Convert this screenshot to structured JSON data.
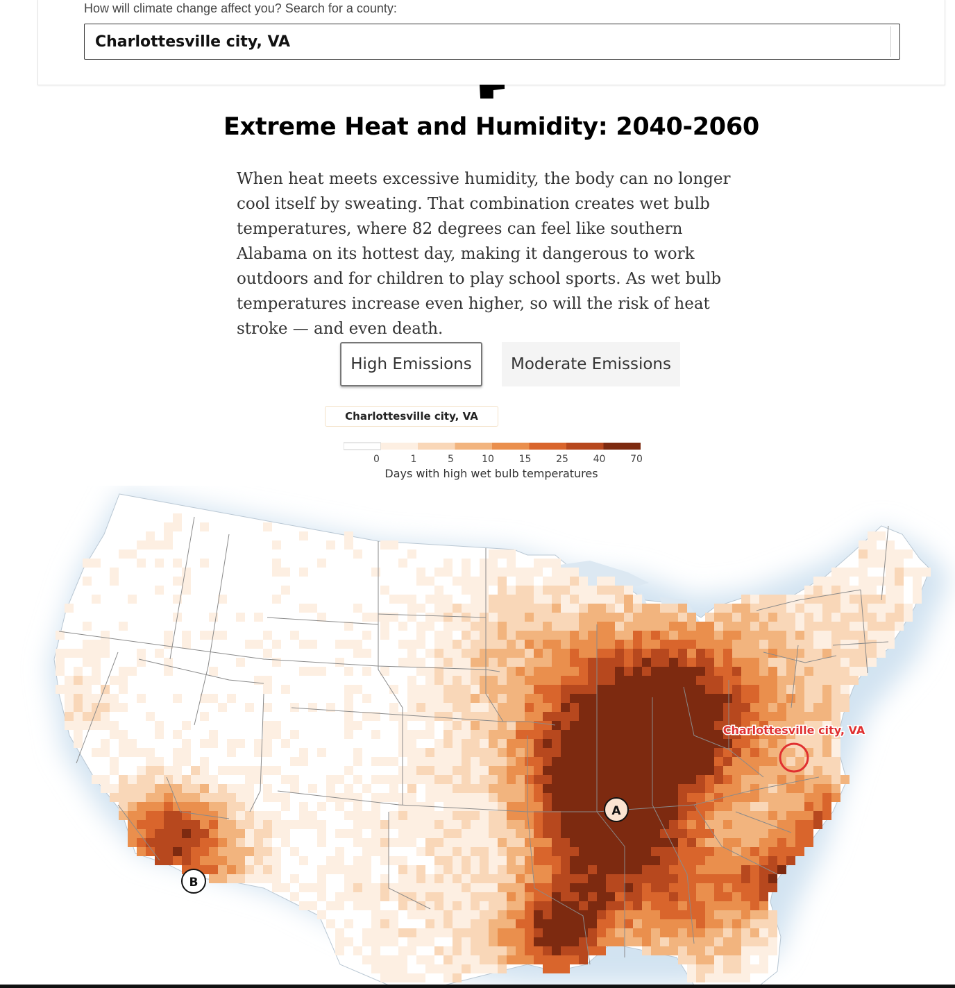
{
  "search": {
    "label": "How will climate change affect you? Search for a county:",
    "value": "Charlottesville city, VA"
  },
  "title": "Extreme Heat and Humidity: 2040-2060",
  "body": "When heat meets excessive humidity, the body can no longer cool itself by sweating. That combination creates wet bulb temperatures, where 82 degrees can feel like southern Alabama on its hottest day, making it dangerous to work outdoors and for children to play school sports. As wet bulb temperatures increase even higher, so will the risk of heat stroke — and even death.",
  "buttons": {
    "high": "High Emissions",
    "moderate": "Moderate Emissions",
    "selected": "High Emissions"
  },
  "county_pill": "Charlottesville city, VA",
  "legend": {
    "caption": "Days with high wet bulb temperatures",
    "ticks": [
      "0",
      "1",
      "5",
      "10",
      "15",
      "25",
      "40",
      "70"
    ],
    "colors": [
      "#ffffff",
      "#fdefe2",
      "#f9d7b8",
      "#f2b47e",
      "#ea8f4d",
      "#d9652c",
      "#b7481e",
      "#7d2a10"
    ]
  },
  "map": {
    "marker_label": "Charlottesville city, VA",
    "marker_a": "A",
    "marker_b": "B",
    "colors": {
      "water": "#dce8f2",
      "land": "#ffffff",
      "border": "#8a8a8a",
      "highlight": "#e03030"
    }
  }
}
